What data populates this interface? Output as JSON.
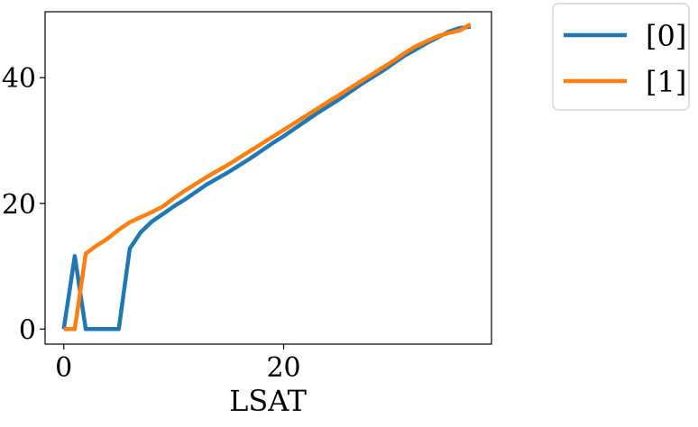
{
  "chart_data": {
    "type": "line",
    "title": "",
    "xlabel": "LSAT",
    "ylabel": "",
    "xlim": [
      -1.7,
      38.9
    ],
    "ylim": [
      -2.4,
      50.5
    ],
    "xticks": [
      0,
      20
    ],
    "xtick_labels": [
      "0",
      "20"
    ],
    "yticks": [
      0,
      20,
      40
    ],
    "ytick_labels": [
      "0",
      "20",
      "40"
    ],
    "grid": false,
    "legend": {
      "placement": "outside-top-right"
    },
    "series": [
      {
        "name": "[0]",
        "color": "#1f77b4",
        "x": [
          0,
          1,
          2,
          3,
          4,
          5,
          6,
          7,
          8,
          9,
          10,
          11,
          12,
          13,
          14,
          15,
          16,
          17,
          18,
          19,
          20,
          21,
          22,
          23,
          24,
          25,
          26,
          27,
          28,
          29,
          30,
          31,
          32,
          33,
          34,
          35,
          36,
          37
        ],
        "y": [
          0,
          11.6,
          0,
          0,
          0,
          0,
          12.8,
          15.4,
          17.1,
          18.3,
          19.5,
          20.6,
          21.8,
          23,
          24,
          25,
          26.1,
          27.2,
          28.4,
          29.6,
          30.7,
          31.9,
          33.1,
          34.3,
          35.4,
          36.5,
          37.7,
          38.9,
          40,
          41.1,
          42.3,
          43.5,
          44.5,
          45.5,
          46.4,
          47.3,
          47.9,
          48.1
        ]
      },
      {
        "name": "[1]",
        "color": "#ff7f0e",
        "x": [
          0,
          1,
          2,
          3,
          4,
          5,
          6,
          7,
          8,
          9,
          10,
          11,
          12,
          13,
          14,
          15,
          16,
          17,
          18,
          19,
          20,
          21,
          22,
          23,
          24,
          25,
          26,
          27,
          28,
          29,
          30,
          31,
          32,
          33,
          34,
          35,
          36,
          37
        ],
        "y": [
          0,
          0,
          12,
          13.3,
          14.4,
          15.8,
          17,
          17.8,
          18.6,
          19.5,
          20.8,
          22,
          23.1,
          24.2,
          25.2,
          26.2,
          27.3,
          28.4,
          29.5,
          30.6,
          31.7,
          32.8,
          33.9,
          35,
          36.1,
          37.2,
          38.3,
          39.4,
          40.5,
          41.6,
          42.7,
          43.9,
          45,
          45.8,
          46.6,
          47.1,
          47.5,
          48.5
        ]
      }
    ]
  }
}
